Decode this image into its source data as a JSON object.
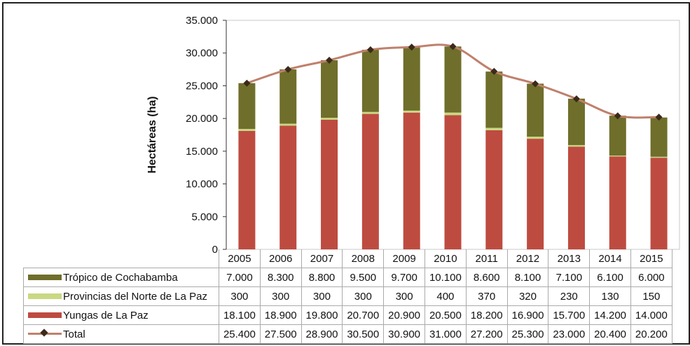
{
  "chart_data": {
    "type": "bar",
    "stacked": true,
    "ylabel": "Hectáreas (ha)",
    "ylim": [
      0,
      35000
    ],
    "yticks": [
      "0",
      "5.000",
      "10.000",
      "15.000",
      "20.000",
      "25.000",
      "30.000",
      "35.000"
    ],
    "categories": [
      "2005",
      "2006",
      "2007",
      "2008",
      "2009",
      "2010",
      "2011",
      "2012",
      "2013",
      "2014",
      "2015"
    ],
    "series": [
      {
        "name": "Yungas de La Paz",
        "type": "bar",
        "color": "#BE4B40",
        "values": [
          18100,
          18900,
          19800,
          20700,
          20900,
          20500,
          18200,
          16900,
          15700,
          14200,
          14000
        ],
        "labels": [
          "18.100",
          "18.900",
          "19.800",
          "20.700",
          "20.900",
          "20.500",
          "18.200",
          "16.900",
          "15.700",
          "14.200",
          "14.000"
        ]
      },
      {
        "name": "Provincias del Norte de La Paz",
        "type": "bar",
        "color": "#C9D882",
        "values": [
          300,
          300,
          300,
          300,
          300,
          400,
          370,
          320,
          230,
          130,
          150
        ],
        "labels": [
          "300",
          "300",
          "300",
          "300",
          "300",
          "400",
          "370",
          "320",
          "230",
          "130",
          "150"
        ]
      },
      {
        "name": "Trópico de Cochabamba",
        "type": "bar",
        "color": "#6F6E2B",
        "values": [
          7000,
          8300,
          8800,
          9500,
          9700,
          10100,
          8600,
          8100,
          7100,
          6100,
          6000
        ],
        "labels": [
          "7.000",
          "8.300",
          "8.800",
          "9.500",
          "9.700",
          "10.100",
          "8.600",
          "8.100",
          "7.100",
          "6.100",
          "6.000"
        ]
      },
      {
        "name": "Total",
        "type": "line",
        "color": "#C0806C",
        "values": [
          25400,
          27500,
          28900,
          30500,
          30900,
          31000,
          27200,
          25300,
          23000,
          20400,
          20200
        ],
        "labels": [
          "25.400",
          "27.500",
          "28.900",
          "30.500",
          "30.900",
          "31.000",
          "27.200",
          "25.300",
          "23.000",
          "20.400",
          "20.200"
        ]
      }
    ],
    "table_order": [
      2,
      1,
      0,
      3
    ],
    "grid": false,
    "legend": "data-table-bottom"
  }
}
